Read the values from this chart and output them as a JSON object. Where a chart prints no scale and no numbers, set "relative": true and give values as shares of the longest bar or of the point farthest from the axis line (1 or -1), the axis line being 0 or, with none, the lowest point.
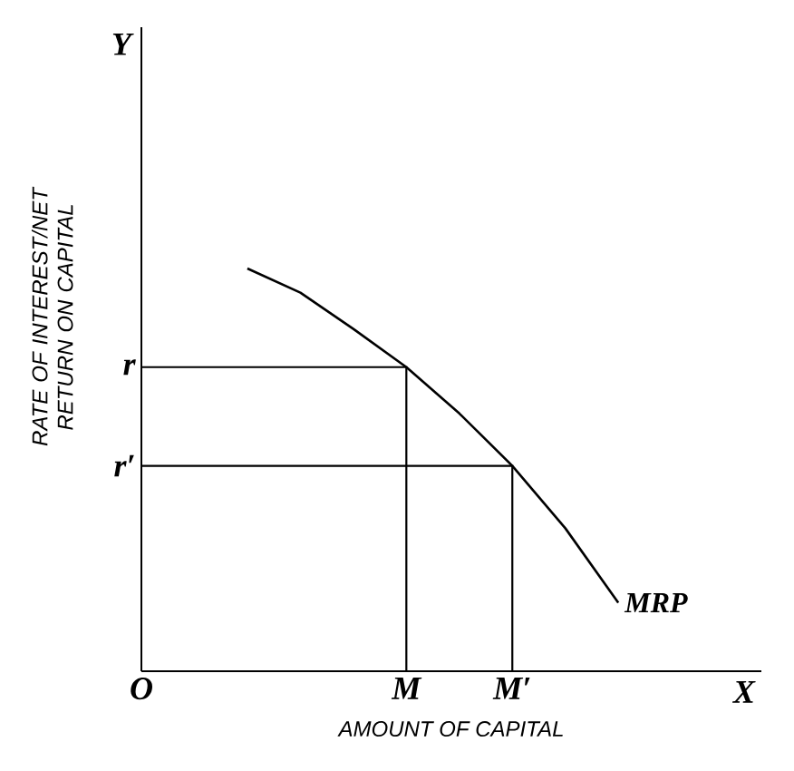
{
  "chart_data": {
    "type": "line",
    "relative": true,
    "xlabel": "AMOUNT OF CAPITAL",
    "ylabel": "RATE OF INTEREST/NET RETURN ON CAPITAL",
    "categories": [
      "O",
      null,
      null,
      null,
      null,
      "M",
      null,
      "M′",
      null,
      null,
      null,
      null
    ],
    "annotations": [
      "X",
      "Y"
    ],
    "series": [
      {
        "name": "MRP",
        "color": "#000000",
        "values": [
          null,
          null,
          1.0,
          0.94,
          0.85,
          0.755,
          0.64,
          0.51,
          0.355,
          0.17,
          null,
          null
        ]
      }
    ],
    "ref_lines": [
      {
        "axis": "y",
        "value": 0.755,
        "label": "r"
      },
      {
        "axis": "y",
        "value": 0.51,
        "label": "r′"
      }
    ],
    "legend": false,
    "marker": "none",
    "line_style": "solid"
  }
}
